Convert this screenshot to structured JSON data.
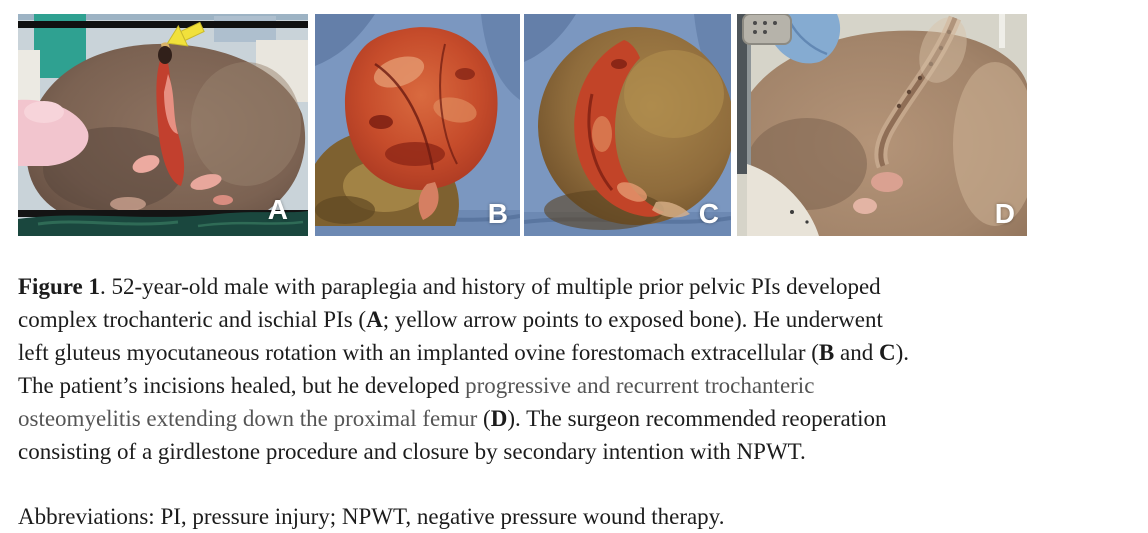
{
  "figure": {
    "panels": [
      {
        "label": "A",
        "arrow_icon": "yellow-arrow"
      },
      {
        "label": "B"
      },
      {
        "label": "C"
      },
      {
        "label": "D"
      }
    ],
    "caption_lines": [
      [
        {
          "t": "Figure 1",
          "b": 1
        },
        {
          "t": ". 52-year-old male with paraplegia and history of multiple prior pelvic PIs developed"
        }
      ],
      [
        {
          "t": "complex trochanteric and ischial PIs ("
        },
        {
          "t": "A",
          "b": 1
        },
        {
          "t": "; yellow arrow points to exposed bone). He underwent"
        }
      ],
      [
        {
          "t": "left gluteus myocutaneous rotation with an implanted ovine forestomach extracellular ("
        },
        {
          "t": "B",
          "b": 1
        },
        {
          "t": " and "
        },
        {
          "t": "C",
          "b": 1
        },
        {
          "t": ")."
        }
      ],
      [
        {
          "t": "The patient’s incisions healed, but he developed "
        },
        {
          "t": "progressive and recurrent trochanteric",
          "g": 1
        }
      ],
      [
        {
          "t": "osteomyelitis extending down the proximal femur",
          "g": 1
        },
        {
          "t": " ("
        },
        {
          "t": "D",
          "b": 1
        },
        {
          "t": "). The surgeon recommended reoperation"
        }
      ],
      [
        {
          "t": "consisting of a girdlestone procedure and closure by secondary intention with NPWT."
        }
      ]
    ],
    "abbreviations": "Abbreviations: PI, pressure injury; NPWT, negative pressure wound therapy.",
    "colors": {
      "arrow_yellow": "#f1e13b",
      "panel_label": "#ffffff",
      "caption_text": "#1c1c1c",
      "caption_gray_text": "#555555",
      "drape_blue": "#7b97c0",
      "drape_teal": "#1a473e"
    }
  }
}
